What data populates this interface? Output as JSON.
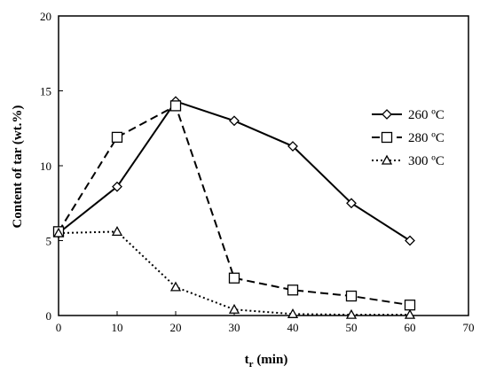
{
  "chart_data": {
    "type": "line",
    "title": "",
    "xlabel": "t",
    "xlabel_subscript": "r",
    "xlabel_suffix": " (min)",
    "ylabel": "Content of tar (wt.%)",
    "xlim": [
      0,
      70
    ],
    "ylim": [
      0,
      20
    ],
    "xticks": [
      0,
      10,
      20,
      30,
      40,
      50,
      60,
      70
    ],
    "yticks": [
      0,
      5,
      10,
      15,
      20
    ],
    "grid": false,
    "legend_position": "right",
    "series": [
      {
        "name": "260 ºC",
        "marker": "diamond",
        "line_style": "solid",
        "x": [
          0,
          10,
          20,
          30,
          40,
          50,
          60
        ],
        "y": [
          5.5,
          8.6,
          14.3,
          13.0,
          11.3,
          7.5,
          5.0
        ]
      },
      {
        "name": "280 ºC",
        "marker": "square",
        "line_style": "dashed",
        "x": [
          0,
          10,
          20,
          30,
          40,
          50,
          60
        ],
        "y": [
          5.6,
          11.9,
          14.0,
          2.5,
          1.7,
          1.3,
          0.7
        ]
      },
      {
        "name": "300 ºC",
        "marker": "triangle",
        "line_style": "dotted",
        "x": [
          0,
          10,
          20,
          30,
          40,
          50,
          60
        ],
        "y": [
          5.5,
          5.6,
          1.9,
          0.4,
          0.1,
          0.05,
          0.05
        ]
      }
    ]
  }
}
